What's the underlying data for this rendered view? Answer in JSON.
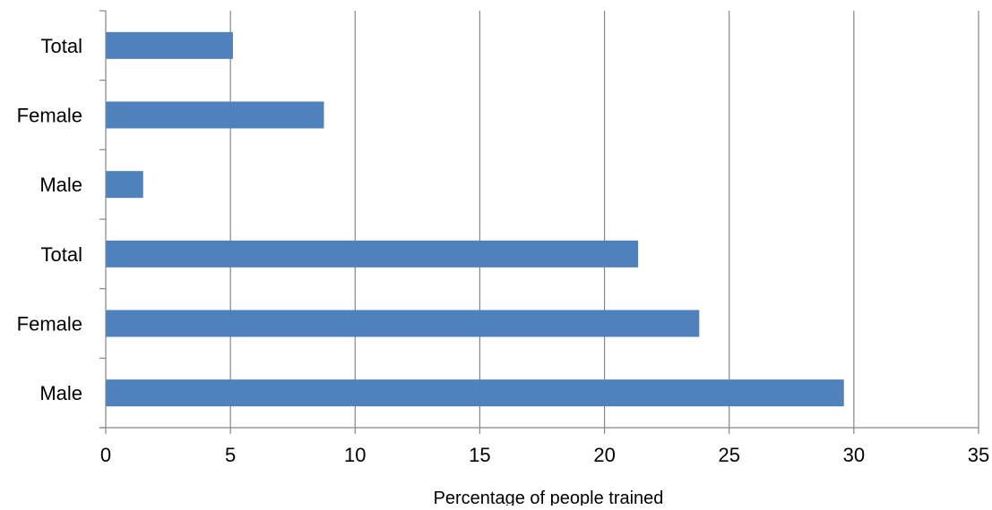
{
  "chart_data": {
    "type": "bar",
    "orientation": "horizontal",
    "categories": [
      "Male",
      "Female",
      "Total",
      "Male",
      "Female",
      "Total"
    ],
    "values": [
      29.6,
      23.8,
      21.35,
      1.5,
      8.75,
      5.1
    ],
    "xlabel": "Percentage of people trained",
    "ylabel": "",
    "xlim": [
      0,
      35
    ],
    "xticks": [
      0,
      5,
      10,
      15,
      20,
      25,
      30,
      35
    ],
    "grid": "vertical major gridlines",
    "legend": "none",
    "bar_color": "#4F81BD"
  }
}
